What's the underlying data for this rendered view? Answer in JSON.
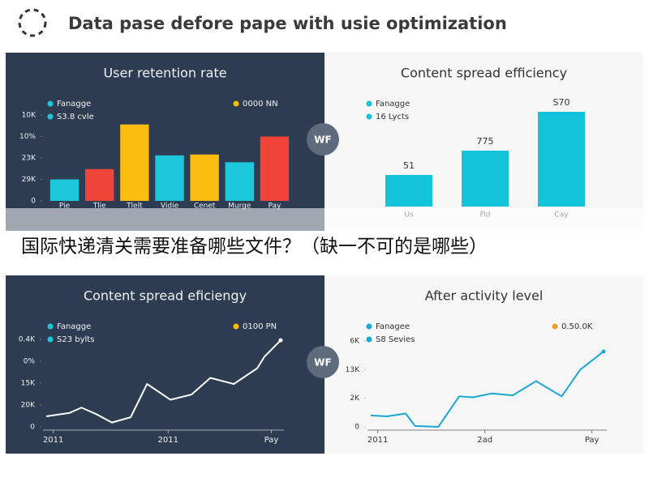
{
  "title": "Data pase defore pape with usie optimization",
  "caption": "国际快递清关需要准备哪些文件？（缺一不可的是哪些）",
  "chart_data": [
    {
      "type": "bar",
      "title": "User retention rate",
      "background": "#2d3c50",
      "text_color": "#eef2f6",
      "categories": [
        "Pie",
        "Tlie",
        "Tlelt",
        "Vidie",
        "Cenet",
        "Murge",
        "Pay"
      ],
      "values": [
        25,
        37,
        89,
        53,
        54,
        45,
        75
      ],
      "colors": [
        "#1ec8dc",
        "#f0443a",
        "#fbbd0f",
        "#1ec8dc",
        "#fbbd0f",
        "#1ec8dc",
        "#f0443a"
      ],
      "ylim": [
        0,
        100
      ],
      "yticks": [
        0,
        {
          "value": 25,
          "label": "29K"
        },
        {
          "value": 50,
          "label": "23K"
        },
        {
          "value": 75,
          "label": "10%"
        },
        {
          "value": 100,
          "label": "10K"
        }
      ],
      "legend": [
        {
          "name": "Fanagge",
          "color": "#1ec8dc",
          "position": "left"
        },
        {
          "name": "S3.8 cvle",
          "color": "#1ec8dc",
          "position": "left"
        },
        {
          "name": "0000 NN",
          "color": "#fbbd0f",
          "position": "right"
        }
      ]
    },
    {
      "type": "bar",
      "title": "Content spread efficiency",
      "background": "#f6f6f6",
      "text_color": "#333333",
      "categories": [
        "Us",
        "Fid",
        "Cay"
      ],
      "values": [
        39,
        69,
        117
      ],
      "annotations": [
        "51",
        "775",
        "S70"
      ],
      "colors": [
        "#12c3da",
        "#12c3da",
        "#12c3da"
      ],
      "ylim": [
        0,
        120
      ],
      "legend": [
        {
          "name": "Fanagge",
          "color": "#12c3da",
          "position": "left"
        },
        {
          "name": "16 Lycts",
          "color": "#12c3da",
          "position": "left"
        }
      ]
    },
    {
      "type": "line",
      "title": "Content spread eficiengy",
      "background": "#2d3c50",
      "text_color": "#eef2f6",
      "color": "#ffffff",
      "x": [
        0,
        10,
        15,
        21,
        28,
        36,
        43,
        53,
        62,
        70,
        80,
        90,
        93,
        100
      ],
      "values": [
        12,
        16,
        22,
        15,
        5,
        11,
        49,
        31,
        37,
        56,
        49,
        67,
        80,
        99
      ],
      "xlim": [
        0,
        100
      ],
      "xticks": [
        {
          "value": 3,
          "label": "2011"
        },
        {
          "value": 52,
          "label": "2011"
        },
        {
          "value": 96,
          "label": "Pay"
        }
      ],
      "ylim": [
        0,
        100
      ],
      "yticks": [
        0,
        {
          "value": 25,
          "label": "20K"
        },
        {
          "value": 50,
          "label": "15K"
        },
        {
          "value": 75,
          "label": "0%"
        },
        {
          "value": 100,
          "label": "0.4K"
        }
      ],
      "legend": [
        {
          "name": "Fanagge",
          "color": "#1ec8dc",
          "position": "left"
        },
        {
          "name": "S23 bylts",
          "color": "#1ec8dc",
          "position": "left"
        },
        {
          "name": "0100 PN",
          "color": "#fbbd0f",
          "position": "right"
        }
      ]
    },
    {
      "type": "line",
      "title": "After activity level",
      "background": "#f6f6f6",
      "text_color": "#333333",
      "color": "#1aa8d0",
      "x": [
        0,
        7,
        15,
        19,
        29,
        38,
        44,
        52,
        61,
        71,
        82,
        90,
        100
      ],
      "values": [
        12,
        11,
        14,
        1,
        0,
        32,
        31,
        35,
        33,
        48,
        32,
        60,
        79
      ],
      "xlim": [
        0,
        100
      ],
      "xticks": [
        {
          "value": 3,
          "label": "2011"
        },
        {
          "value": 49,
          "label": "2ad"
        },
        {
          "value": 95,
          "label": "Pay"
        }
      ],
      "ylim": [
        0,
        90
      ],
      "yticks": [
        0,
        {
          "value": 30,
          "label": "2K"
        },
        {
          "value": 60,
          "label": "13K"
        },
        {
          "value": 90,
          "label": "6K"
        }
      ],
      "legend": [
        {
          "name": "Fanagee",
          "color": "#1aa8d0",
          "position": "left"
        },
        {
          "name": "S8 Sevies",
          "color": "#1aa8d0",
          "position": "left"
        },
        {
          "name": "0.50.0K",
          "color": "#f0a020",
          "position": "right"
        }
      ]
    }
  ]
}
